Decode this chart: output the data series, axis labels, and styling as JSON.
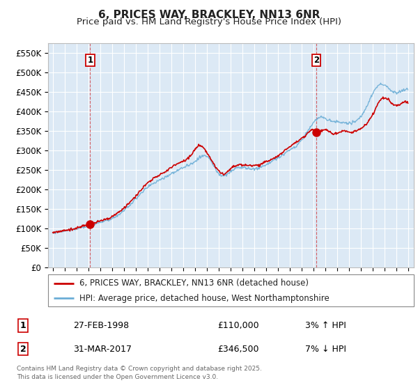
{
  "title": "6, PRICES WAY, BRACKLEY, NN13 6NR",
  "subtitle": "Price paid vs. HM Land Registry's House Price Index (HPI)",
  "ylim": [
    0,
    575000
  ],
  "yticks": [
    0,
    50000,
    100000,
    150000,
    200000,
    250000,
    300000,
    350000,
    400000,
    450000,
    500000,
    550000
  ],
  "ytick_labels": [
    "£0",
    "£50K",
    "£100K",
    "£150K",
    "£200K",
    "£250K",
    "£300K",
    "£350K",
    "£400K",
    "£450K",
    "£500K",
    "£550K"
  ],
  "background_color": "#ffffff",
  "plot_background_color": "#dce9f5",
  "grid_color": "#ffffff",
  "sale1_date": 1998.15,
  "sale1_price": 110000,
  "sale1_label": "1",
  "sale2_date": 2017.25,
  "sale2_price": 346500,
  "sale2_label": "2",
  "hpi_line_color": "#6baed6",
  "price_line_color": "#cc0000",
  "sale_marker_color": "#cc0000",
  "legend_line1": "6, PRICES WAY, BRACKLEY, NN13 6NR (detached house)",
  "legend_line2": "HPI: Average price, detached house, West Northamptonshire",
  "table_row1": [
    "1",
    "27-FEB-1998",
    "£110,000",
    "3% ↑ HPI"
  ],
  "table_row2": [
    "2",
    "31-MAR-2017",
    "£346,500",
    "7% ↓ HPI"
  ],
  "footer": "Contains HM Land Registry data © Crown copyright and database right 2025.\nThis data is licensed under the Open Government Licence v3.0.",
  "title_fontsize": 11,
  "subtitle_fontsize": 9.5,
  "tick_fontsize": 8.5
}
